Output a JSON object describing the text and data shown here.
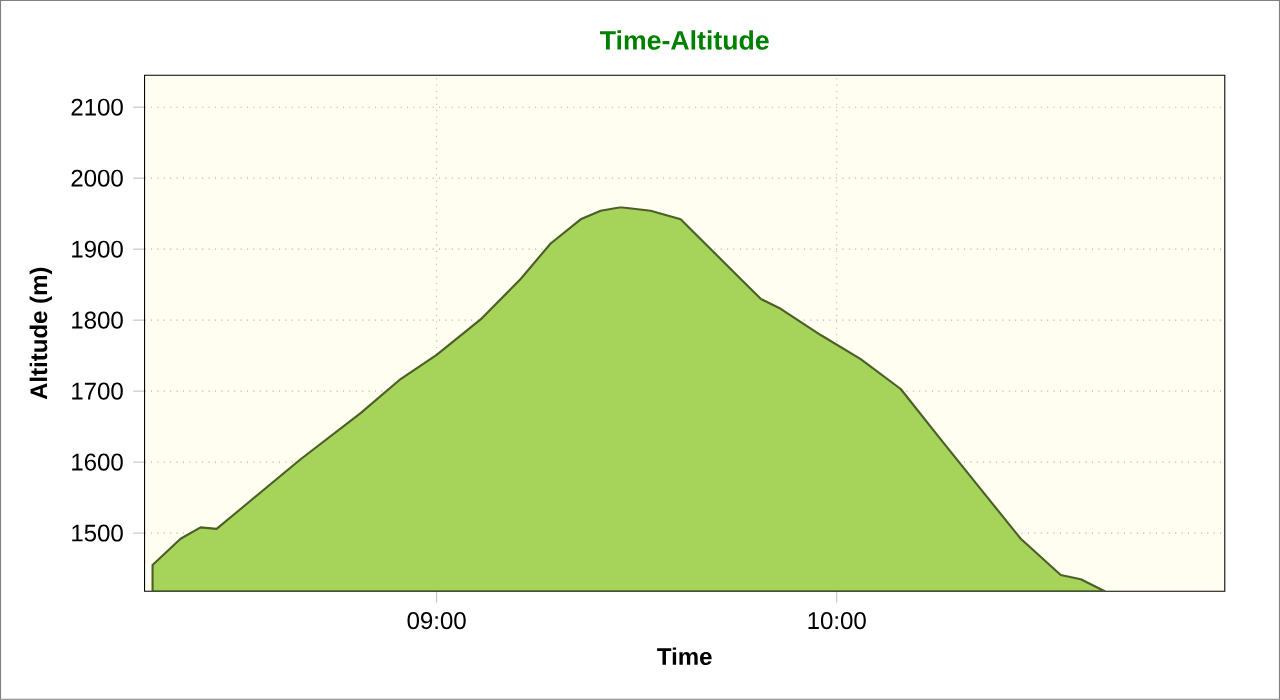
{
  "chart_data": {
    "type": "area",
    "title": "Time-Altitude",
    "xlabel": "Time",
    "ylabel": "Altitude (m)",
    "x": [
      8.29,
      8.36,
      8.41,
      8.45,
      8.51,
      8.66,
      8.81,
      8.91,
      9.0,
      9.11,
      9.21,
      9.285,
      9.36,
      9.41,
      9.46,
      9.535,
      9.61,
      9.685,
      9.76,
      9.81,
      9.86,
      9.96,
      10.06,
      10.16,
      10.26,
      10.36,
      10.46,
      10.56,
      10.61,
      10.67
    ],
    "values": [
      1455,
      1492,
      1508,
      1506,
      1534,
      1604,
      1669,
      1717,
      1751,
      1801,
      1858,
      1908,
      1942,
      1954,
      1959,
      1954,
      1942,
      1900,
      1858,
      1830,
      1816,
      1779,
      1745,
      1703,
      1632,
      1562,
      1492,
      1441,
      1435,
      1418
    ],
    "color": "#a6d35a",
    "xlim": [
      8.27,
      10.97
    ],
    "ylim": [
      1418,
      2145
    ],
    "xticks": [
      {
        "value": 9,
        "label": "09:00"
      },
      {
        "value": 10,
        "label": "10:00"
      }
    ],
    "yticks": [
      1500,
      1600,
      1700,
      1800,
      1900,
      2000,
      2100
    ],
    "grid": true
  }
}
